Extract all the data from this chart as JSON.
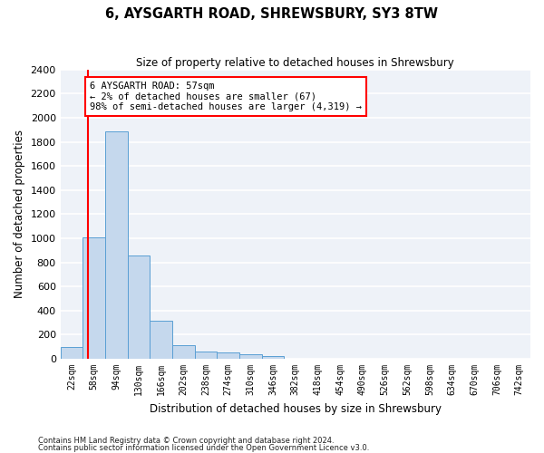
{
  "title": "6, AYSGARTH ROAD, SHREWSBURY, SY3 8TW",
  "subtitle": "Size of property relative to detached houses in Shrewsbury",
  "xlabel": "Distribution of detached houses by size in Shrewsbury",
  "ylabel": "Number of detached properties",
  "bar_color": "#c5d8ed",
  "bar_edge_color": "#5a9fd4",
  "background_color": "#eef2f8",
  "grid_color": "#ffffff",
  "ylim": [
    0,
    2400
  ],
  "yticks": [
    0,
    200,
    400,
    600,
    800,
    1000,
    1200,
    1400,
    1600,
    1800,
    2000,
    2200,
    2400
  ],
  "bin_labels": [
    "22sqm",
    "58sqm",
    "94sqm",
    "130sqm",
    "166sqm",
    "202sqm",
    "238sqm",
    "274sqm",
    "310sqm",
    "346sqm",
    "382sqm",
    "418sqm",
    "454sqm",
    "490sqm",
    "526sqm",
    "562sqm",
    "598sqm",
    "634sqm",
    "670sqm",
    "706sqm",
    "742sqm"
  ],
  "bar_heights": [
    95,
    1010,
    1890,
    860,
    315,
    115,
    58,
    50,
    35,
    20,
    0,
    0,
    0,
    0,
    0,
    0,
    0,
    0,
    0,
    0,
    0
  ],
  "property_label": "6 AYSGARTH ROAD: 57sqm",
  "annotation_line1": "← 2% of detached houses are smaller (67)",
  "annotation_line2": "98% of semi-detached houses are larger (4,319) →",
  "vline_x_index": 0.72,
  "footnote1": "Contains HM Land Registry data © Crown copyright and database right 2024.",
  "footnote2": "Contains public sector information licensed under the Open Government Licence v3.0."
}
